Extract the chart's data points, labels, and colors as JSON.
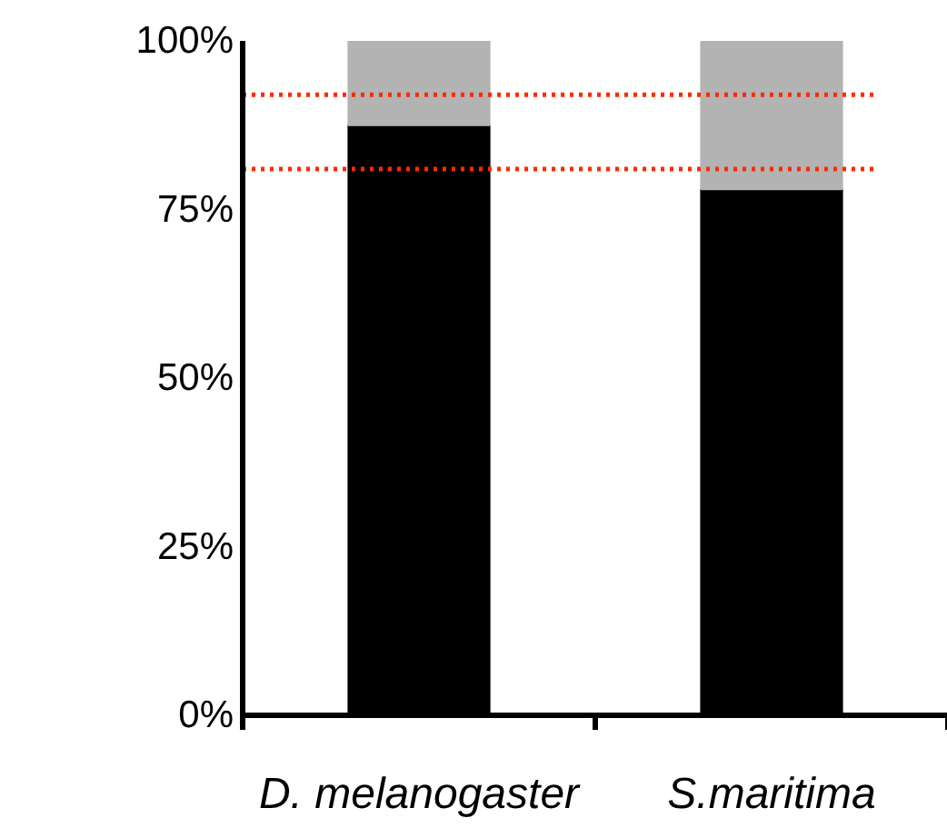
{
  "chart_data": {
    "type": "bar",
    "stacked": true,
    "categories": [
      "D. melanogaster",
      "S.maritima"
    ],
    "series": [
      {
        "color": "#000000",
        "values": [
          87.5,
          78
        ]
      },
      {
        "color": "#b3b3b3",
        "values": [
          12.5,
          22
        ]
      }
    ],
    "ylim": [
      0,
      100
    ],
    "yticks": [
      {
        "value": 0,
        "label": "0%"
      },
      {
        "value": 25,
        "label": "25%"
      },
      {
        "value": 50,
        "label": "50%"
      },
      {
        "value": 75,
        "label": "75%"
      },
      {
        "value": 100,
        "label": "100%"
      }
    ],
    "ref_lines": [
      {
        "axis": "y",
        "value": 92,
        "color": "#ff2a00",
        "line_style": "dotted"
      },
      {
        "axis": "y",
        "value": 81,
        "color": "#ff2a00",
        "line_style": "dotted"
      }
    ],
    "grid": false
  }
}
